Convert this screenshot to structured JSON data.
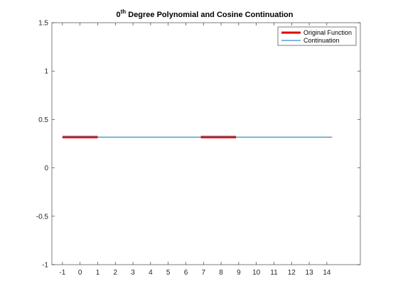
{
  "chart_data": {
    "type": "line",
    "title": {
      "main": "0",
      "superscript": "th",
      "rest": " Degree Polynomial and Cosine Continuation"
    },
    "xlabel": "",
    "ylabel": "",
    "xlim": [
      -1.6,
      15.9
    ],
    "ylim": [
      -1,
      1.5
    ],
    "xticks": [
      -1,
      0,
      1,
      2,
      3,
      4,
      5,
      6,
      7,
      8,
      9,
      10,
      11,
      12,
      13,
      14
    ],
    "xtick_labels": [
      "-1",
      "0",
      "1",
      "2",
      "3",
      "4",
      "5",
      "6",
      "7",
      "8",
      "9",
      "10",
      "11",
      "12",
      "13",
      "14"
    ],
    "yticks": [
      -1,
      -0.5,
      0,
      0.5,
      1,
      1.5
    ],
    "ytick_labels": [
      "-1",
      "-0.5",
      "0",
      "0.5",
      "1",
      "1.5"
    ],
    "grid": false,
    "legend_position": "top-right",
    "series": [
      {
        "name": "Original Function",
        "color": "#e00000",
        "style": "thick",
        "segments": [
          {
            "x": [
              -1,
              1
            ],
            "y": [
              0.318,
              0.318
            ]
          },
          {
            "x": [
              6.85,
              8.85
            ],
            "y": [
              0.318,
              0.318
            ]
          }
        ]
      },
      {
        "name": "Continuation",
        "color": "#0072bd",
        "style": "thin",
        "segments": [
          {
            "x": [
              -1,
              14.3
            ],
            "y": [
              0.318,
              0.318
            ]
          }
        ]
      }
    ]
  }
}
